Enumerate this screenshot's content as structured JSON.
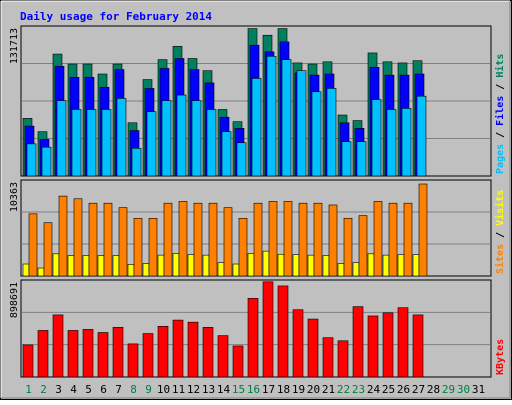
{
  "chart_data": {
    "title": "Daily usage for February 2014",
    "days": [
      "1",
      "2",
      "3",
      "4",
      "5",
      "6",
      "7",
      "8",
      "9",
      "10",
      "11",
      "12",
      "13",
      "14",
      "15",
      "16",
      "17",
      "18",
      "19",
      "20",
      "21",
      "22",
      "23",
      "24",
      "25",
      "26",
      "27",
      "28",
      "29",
      "30",
      "31"
    ],
    "day_colors": [
      "#008040",
      "#008040",
      "#000000",
      "#000000",
      "#000000",
      "#000000",
      "#000000",
      "#008040",
      "#008040",
      "#000000",
      "#000000",
      "#000000",
      "#000000",
      "#000000",
      "#008040",
      "#008040",
      "#000000",
      "#000000",
      "#000000",
      "#000000",
      "#000000",
      "#008040",
      "#008040",
      "#000000",
      "#000000",
      "#000000",
      "#000000",
      "#000000",
      "#008040",
      "#008040",
      "#000000"
    ],
    "panels": [
      {
        "type": "bar",
        "max_label": "131713",
        "ymax": 131713,
        "side_labels": [
          {
            "text": "Pages",
            "color": "#00c0ff"
          },
          {
            "text": " / ",
            "color": "#000000"
          },
          {
            "text": "Files",
            "color": "#0000ff"
          },
          {
            "text": " / ",
            "color": "#000000"
          },
          {
            "text": "Hits",
            "color": "#008060"
          }
        ],
        "series": [
          {
            "name": "Hits",
            "color": "#008060",
            "values": [
              52000,
              40000,
              110000,
              101000,
              101000,
              92000,
              101000,
              48000,
              87000,
              105000,
              117000,
              106000,
              95000,
              60000,
              49000,
              133000,
              127000,
              133000,
              102000,
              101000,
              103000,
              55000,
              50000,
              111000,
              103000,
              102000,
              104000,
              0,
              0,
              0,
              0
            ]
          },
          {
            "name": "Files",
            "color": "#0000ff",
            "values": [
              45000,
              33000,
              99000,
              89000,
              89000,
              80000,
              96000,
              41000,
              79000,
              97000,
              106000,
              96000,
              84000,
              53000,
              43000,
              118000,
              112000,
              121000,
              93000,
              91000,
              92000,
              48000,
              43000,
              98000,
              91000,
              91000,
              92000,
              0,
              0,
              0,
              0
            ]
          },
          {
            "name": "Pages",
            "color": "#00c0ff",
            "values": [
              29000,
              26000,
              68000,
              60000,
              60000,
              60000,
              70000,
              25000,
              58000,
              68000,
              73000,
              68000,
              60000,
              40000,
              30000,
              88000,
              108000,
              105000,
              95000,
              76000,
              79000,
              31000,
              31000,
              69000,
              60000,
              61000,
              72000,
              0,
              0,
              0,
              0
            ]
          }
        ]
      },
      {
        "type": "bar",
        "max_label": "10363",
        "ymax": 10363,
        "side_labels": [
          {
            "text": "Sites",
            "color": "#ff8000"
          },
          {
            "text": " / ",
            "color": "#000000"
          },
          {
            "text": "Visits",
            "color": "#ffff00"
          }
        ],
        "series": [
          {
            "name": "Visits",
            "color": "#ffff00",
            "values": [
              1350,
              900,
              2500,
              2300,
              2300,
              2300,
              2300,
              1300,
              1400,
              2350,
              2550,
              2400,
              2350,
              1500,
              1350,
              2550,
              2800,
              2450,
              2400,
              2350,
              2300,
              1400,
              1500,
              2500,
              2350,
              2400,
              2400,
              0,
              0,
              0,
              0
            ]
          },
          {
            "name": "Sites",
            "color": "#ff8000",
            "values": [
              7000,
              6000,
              9000,
              8700,
              8200,
              8200,
              7700,
              6500,
              6500,
              8200,
              8400,
              8200,
              8200,
              7700,
              6500,
              8200,
              8400,
              8400,
              8200,
              8200,
              8000,
              6500,
              6800,
              8400,
              8200,
              8200,
              10363,
              0,
              0,
              0,
              0
            ]
          }
        ]
      },
      {
        "type": "bar",
        "max_label": "898691",
        "ymax": 898691,
        "side_labels": [
          {
            "text": "KBytes",
            "color": "#ff0000"
          }
        ],
        "series": [
          {
            "name": "KBytes",
            "color": "#ff0000",
            "values": [
              310000,
              450000,
              600000,
              450000,
              460000,
              430000,
              480000,
              320000,
              420000,
              490000,
              550000,
              530000,
              480000,
              400000,
              300000,
              760000,
              920000,
              880000,
              650000,
              560000,
              380000,
              350000,
              680000,
              590000,
              620000,
              670000,
              600000,
              0,
              0,
              0,
              0
            ]
          }
        ]
      }
    ]
  }
}
